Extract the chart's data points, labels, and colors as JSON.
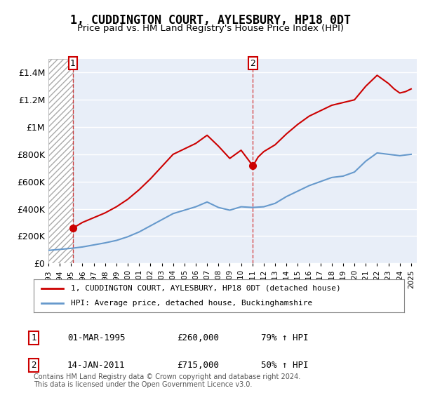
{
  "title": "1, CUDDINGTON COURT, AYLESBURY, HP18 0DT",
  "subtitle": "Price paid vs. HM Land Registry's House Price Index (HPI)",
  "legend_line1": "1, CUDDINGTON COURT, AYLESBURY, HP18 0DT (detached house)",
  "legend_line2": "HPI: Average price, detached house, Buckinghamshire",
  "footer": "Contains HM Land Registry data © Crown copyright and database right 2024.\nThis data is licensed under the Open Government Licence v3.0.",
  "purchase1_date": "01-MAR-1995",
  "purchase1_price": 260000,
  "purchase1_hpi": "79% ↑ HPI",
  "purchase2_date": "14-JAN-2011",
  "purchase2_price": 715000,
  "purchase2_hpi": "50% ↑ HPI",
  "purchase1_year": 1995.17,
  "purchase2_year": 2011.04,
  "ylim": [
    0,
    1500000
  ],
  "yticks": [
    0,
    200000,
    400000,
    600000,
    800000,
    1000000,
    1200000,
    1400000
  ],
  "ytick_labels": [
    "£0",
    "£200K",
    "£400K",
    "£600K",
    "£800K",
    "£1M",
    "£1.2M",
    "£1.4M"
  ],
  "red_color": "#cc0000",
  "blue_color": "#6699cc",
  "hatch_color": "#bbbbbb",
  "bg_color": "#e8eef8",
  "grid_color": "#ffffff",
  "hpi_line": {
    "years": [
      1993,
      1994,
      1995,
      1996,
      1997,
      1998,
      1999,
      2000,
      2001,
      2002,
      2003,
      2004,
      2005,
      2006,
      2007,
      2008,
      2009,
      2010,
      2011,
      2012,
      2013,
      2014,
      2015,
      2016,
      2017,
      2018,
      2019,
      2020,
      2021,
      2022,
      2023,
      2024,
      2025
    ],
    "values": [
      95000,
      102000,
      110000,
      120000,
      135000,
      150000,
      168000,
      195000,
      230000,
      275000,
      320000,
      365000,
      390000,
      415000,
      450000,
      410000,
      390000,
      415000,
      410000,
      415000,
      440000,
      490000,
      530000,
      570000,
      600000,
      630000,
      640000,
      670000,
      750000,
      810000,
      800000,
      790000,
      800000
    ]
  },
  "price_line": {
    "years": [
      1995.17,
      1995.5,
      1996,
      1997,
      1998,
      1999,
      2000,
      2001,
      2002,
      2003,
      2004,
      2005,
      2006,
      2007,
      2008,
      2009,
      2009.5,
      2010,
      2011.04,
      2011.5,
      2012,
      2013,
      2014,
      2015,
      2016,
      2017,
      2018,
      2019,
      2020,
      2021,
      2022,
      2023,
      2023.5,
      2024,
      2024.5,
      2025
    ],
    "values": [
      260000,
      275000,
      300000,
      335000,
      370000,
      415000,
      470000,
      540000,
      620000,
      710000,
      800000,
      840000,
      880000,
      940000,
      860000,
      770000,
      800000,
      830000,
      715000,
      780000,
      820000,
      870000,
      950000,
      1020000,
      1080000,
      1120000,
      1160000,
      1180000,
      1200000,
      1300000,
      1380000,
      1320000,
      1280000,
      1250000,
      1260000,
      1280000
    ]
  }
}
